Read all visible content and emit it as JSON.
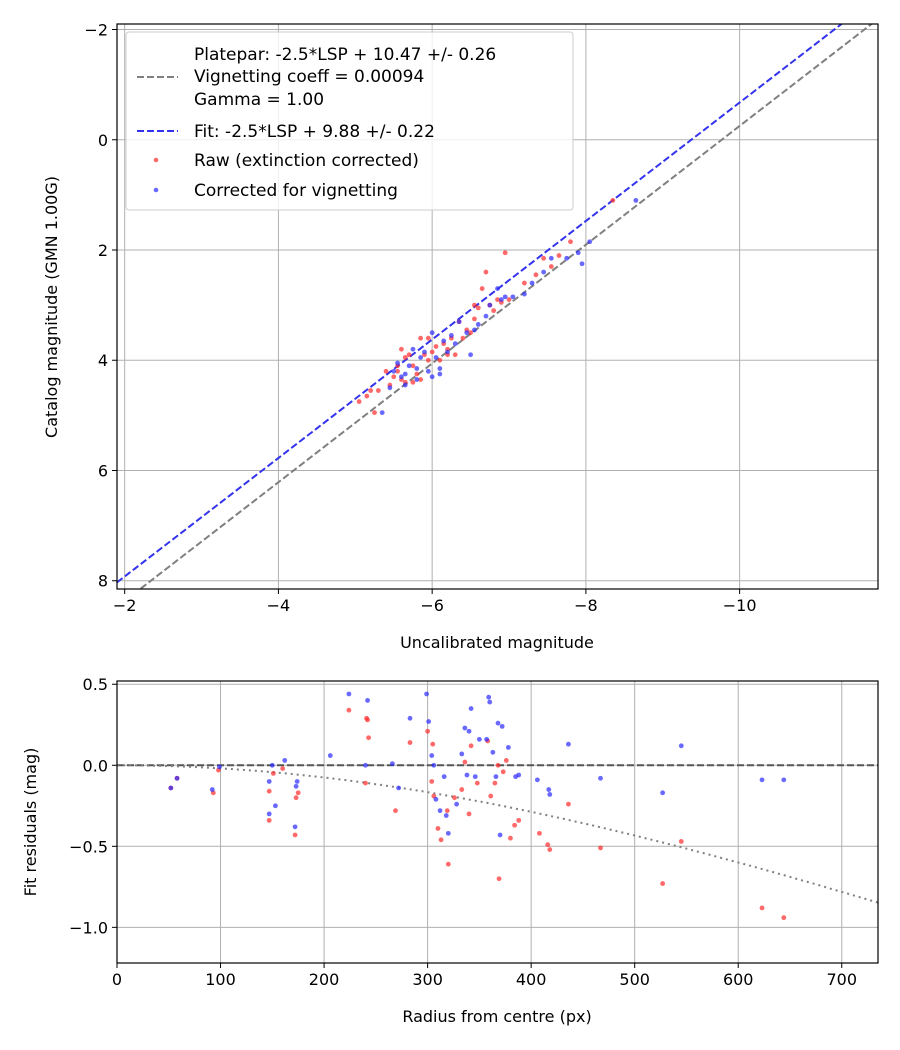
{
  "chart_data": [
    {
      "type": "scatter",
      "name": "calibration",
      "xlabel": "Uncalibrated magnitude",
      "ylabel": "Catalog magnitude (GMN 1.00G)",
      "xlim": [
        -1.9,
        -11.8
      ],
      "ylim": [
        8.15,
        -2.1
      ],
      "xticks": [
        -2,
        -4,
        -6,
        -8,
        -10
      ],
      "xtick_labels": [
        "−2",
        "−4",
        "−6",
        "−8",
        "−10"
      ],
      "yticks": [
        -2,
        0,
        2,
        4,
        6,
        8
      ],
      "ytick_labels": [
        "−2",
        "0",
        "2",
        "4",
        "6",
        "8"
      ],
      "grid": true,
      "legend_position": "top-left",
      "legend": {
        "platepar_line1": "Platepar: -2.5*LSP + 10.47 +/- 0.26",
        "platepar_line2": "Vignetting coeff = 0.00094",
        "platepar_line3": "Gamma = 1.00",
        "fit": "Fit: -2.5*LSP + 9.88 +/- 0.22",
        "raw": "Raw (extinction corrected)",
        "corrected": "Corrected for vignetting"
      },
      "lines": [
        {
          "name": "Platepar",
          "color": "#808080",
          "style": "dashed",
          "x": [
            -1.9,
            -11.8
          ],
          "y": [
            8.475,
            -2.19
          ],
          "x_range": [
            -1.9,
            -11.8
          ]
        },
        {
          "name": "Fit",
          "color": "#3333ee",
          "style": "dashed",
          "x": [
            -1.9,
            -11.8
          ],
          "y": [
            8.03,
            -2.61
          ],
          "x_range": [
            -1.9,
            -11.8
          ]
        }
      ],
      "series": [
        {
          "name": "Raw (extinction corrected)",
          "color": "#ff2a2a",
          "points": [
            [
              -5.05,
              4.75
            ],
            [
              -5.2,
              4.55
            ],
            [
              -5.3,
              4.55
            ],
            [
              -5.15,
              4.65
            ],
            [
              -5.4,
              4.2
            ],
            [
              -5.45,
              4.45
            ],
            [
              -5.5,
              4.3
            ],
            [
              -5.55,
              4.1
            ],
            [
              -5.55,
              4.2
            ],
            [
              -5.6,
              4.35
            ],
            [
              -5.65,
              3.95
            ],
            [
              -5.6,
              3.8
            ],
            [
              -5.7,
              3.9
            ],
            [
              -5.65,
              4.4
            ],
            [
              -5.75,
              4.1
            ],
            [
              -5.8,
              4.25
            ],
            [
              -5.85,
              3.6
            ],
            [
              -5.85,
              4.35
            ],
            [
              -5.9,
              3.9
            ],
            [
              -5.95,
              4.0
            ],
            [
              -6.0,
              3.85
            ],
            [
              -6.05,
              3.75
            ],
            [
              -6.1,
              4.0
            ],
            [
              -6.15,
              3.7
            ],
            [
              -6.2,
              3.8
            ],
            [
              -6.25,
              3.6
            ],
            [
              -6.3,
              3.9
            ],
            [
              -6.35,
              3.3
            ],
            [
              -6.4,
              3.6
            ],
            [
              -6.45,
              3.45
            ],
            [
              -6.5,
              3.5
            ],
            [
              -6.55,
              3.25
            ],
            [
              -6.6,
              3.05
            ],
            [
              -6.65,
              2.7
            ],
            [
              -6.7,
              2.4
            ],
            [
              -6.75,
              3.0
            ],
            [
              -6.8,
              3.1
            ],
            [
              -6.85,
              2.9
            ],
            [
              -6.9,
              2.95
            ],
            [
              -6.95,
              2.05
            ],
            [
              -7.0,
              2.9
            ],
            [
              -7.2,
              2.6
            ],
            [
              -7.35,
              2.45
            ],
            [
              -7.45,
              2.15
            ],
            [
              -7.55,
              2.3
            ],
            [
              -7.65,
              2.1
            ],
            [
              -7.8,
              1.85
            ],
            [
              -8.35,
              1.1
            ],
            [
              -5.25,
              4.95
            ],
            [
              -5.75,
              4.4
            ],
            [
              -6.2,
              3.9
            ],
            [
              -6.55,
              3.0
            ],
            [
              -5.95,
              3.6
            ]
          ]
        },
        {
          "name": "Corrected for vignetting",
          "color": "#2a2aff",
          "points": [
            [
              -5.35,
              4.95
            ],
            [
              -5.45,
              4.5
            ],
            [
              -5.5,
              4.2
            ],
            [
              -5.55,
              4.05
            ],
            [
              -5.6,
              4.3
            ],
            [
              -5.65,
              4.25
            ],
            [
              -5.7,
              4.1
            ],
            [
              -5.75,
              3.8
            ],
            [
              -5.8,
              4.35
            ],
            [
              -5.85,
              3.95
            ],
            [
              -5.9,
              3.85
            ],
            [
              -5.95,
              4.2
            ],
            [
              -6.0,
              4.3
            ],
            [
              -6.0,
              3.5
            ],
            [
              -6.05,
              3.95
            ],
            [
              -6.1,
              4.15
            ],
            [
              -6.15,
              3.65
            ],
            [
              -6.2,
              3.85
            ],
            [
              -6.25,
              3.55
            ],
            [
              -6.3,
              3.7
            ],
            [
              -6.35,
              3.3
            ],
            [
              -6.45,
              3.5
            ],
            [
              -6.5,
              3.9
            ],
            [
              -6.55,
              3.45
            ],
            [
              -6.6,
              3.35
            ],
            [
              -6.7,
              3.2
            ],
            [
              -6.75,
              3.0
            ],
            [
              -6.85,
              2.7
            ],
            [
              -6.9,
              2.9
            ],
            [
              -6.95,
              2.85
            ],
            [
              -7.05,
              2.85
            ],
            [
              -7.2,
              2.8
            ],
            [
              -7.3,
              2.6
            ],
            [
              -7.45,
              2.4
            ],
            [
              -7.55,
              2.15
            ],
            [
              -7.75,
              2.15
            ],
            [
              -7.9,
              2.05
            ],
            [
              -7.95,
              2.25
            ],
            [
              -8.05,
              1.85
            ],
            [
              -8.65,
              1.1
            ],
            [
              -5.65,
              4.45
            ],
            [
              -5.8,
              4.15
            ],
            [
              -6.1,
              4.25
            ]
          ]
        }
      ]
    },
    {
      "type": "scatter",
      "name": "residuals",
      "xlabel": "Radius from centre (px)",
      "ylabel": "Fit residuals (mag)",
      "xlim": [
        0,
        735
      ],
      "ylim": [
        -1.22,
        0.52
      ],
      "xticks": [
        0,
        100,
        200,
        300,
        400,
        500,
        600,
        700
      ],
      "xtick_labels": [
        "0",
        "100",
        "200",
        "300",
        "400",
        "500",
        "600",
        "700"
      ],
      "yticks": [
        0.5,
        0.0,
        -0.5,
        -1.0
      ],
      "ytick_labels": [
        "0.5",
        "0.0",
        "−0.5",
        "−1.0"
      ],
      "grid": true,
      "reference_line": {
        "y": 0.0,
        "color": "#555555",
        "style": "dashed"
      },
      "vignetting_curve": {
        "coeff": 0.00094,
        "color": "#808080",
        "style": "dotted"
      },
      "series": [
        {
          "name": "Raw (extinction corrected)",
          "color": "#ff2a2a",
          "points": [
            [
              52,
              -0.14
            ],
            [
              58,
              -0.08
            ],
            [
              93,
              -0.17
            ],
            [
              98,
              -0.03
            ],
            [
              147,
              -0.34
            ],
            [
              147,
              -0.16
            ],
            [
              151,
              -0.05
            ],
            [
              160,
              -0.02
            ],
            [
              172,
              -0.43
            ],
            [
              173,
              -0.2
            ],
            [
              175,
              -0.17
            ],
            [
              224,
              0.34
            ],
            [
              240,
              -0.11
            ],
            [
              242,
              0.28
            ],
            [
              243,
              0.17
            ],
            [
              269,
              -0.28
            ],
            [
              283,
              0.14
            ],
            [
              300,
              0.21
            ],
            [
              304,
              -0.1
            ],
            [
              305,
              0.13
            ],
            [
              306,
              -0.19
            ],
            [
              310,
              -0.39
            ],
            [
              313,
              -0.46
            ],
            [
              319,
              -0.28
            ],
            [
              320,
              -0.61
            ],
            [
              326,
              -0.2
            ],
            [
              333,
              -0.15
            ],
            [
              336,
              0.02
            ],
            [
              340,
              -0.3
            ],
            [
              342,
              0.12
            ],
            [
              348,
              -0.11
            ],
            [
              358,
              0.15
            ],
            [
              361,
              -0.19
            ],
            [
              365,
              -0.11
            ],
            [
              368,
              0.0
            ],
            [
              369,
              -0.7
            ],
            [
              373,
              -0.04
            ],
            [
              376,
              0.03
            ],
            [
              380,
              -0.45
            ],
            [
              384,
              -0.37
            ],
            [
              388,
              -0.34
            ],
            [
              408,
              -0.42
            ],
            [
              416,
              -0.49
            ],
            [
              418,
              -0.52
            ],
            [
              436,
              -0.24
            ],
            [
              467,
              -0.51
            ],
            [
              527,
              -0.73
            ],
            [
              545,
              -0.47
            ],
            [
              623,
              -0.88
            ],
            [
              644,
              -0.94
            ],
            [
              241,
              0.29
            ]
          ]
        },
        {
          "name": "Corrected for vignetting",
          "color": "#2a2aff",
          "points": [
            [
              52,
              -0.14
            ],
            [
              58,
              -0.08
            ],
            [
              92,
              -0.15
            ],
            [
              99,
              -0.01
            ],
            [
              147,
              -0.3
            ],
            [
              147,
              -0.1
            ],
            [
              150,
              0.0
            ],
            [
              153,
              -0.25
            ],
            [
              162,
              0.03
            ],
            [
              172,
              -0.38
            ],
            [
              173,
              -0.13
            ],
            [
              174,
              -0.1
            ],
            [
              206,
              0.06
            ],
            [
              224,
              0.44
            ],
            [
              240,
              0.0
            ],
            [
              242,
              0.4
            ],
            [
              266,
              0.01
            ],
            [
              272,
              -0.14
            ],
            [
              283,
              0.29
            ],
            [
              299,
              0.44
            ],
            [
              301,
              0.27
            ],
            [
              304,
              0.06
            ],
            [
              306,
              0.0
            ],
            [
              308,
              -0.21
            ],
            [
              312,
              -0.28
            ],
            [
              316,
              -0.07
            ],
            [
              318,
              -0.31
            ],
            [
              320,
              -0.42
            ],
            [
              328,
              -0.24
            ],
            [
              333,
              0.07
            ],
            [
              336,
              0.23
            ],
            [
              338,
              -0.06
            ],
            [
              340,
              0.21
            ],
            [
              342,
              0.35
            ],
            [
              346,
              -0.07
            ],
            [
              350,
              0.16
            ],
            [
              357,
              0.16
            ],
            [
              359,
              0.42
            ],
            [
              360,
              0.39
            ],
            [
              363,
              0.08
            ],
            [
              366,
              -0.07
            ],
            [
              368,
              0.26
            ],
            [
              370,
              -0.43
            ],
            [
              372,
              0.24
            ],
            [
              378,
              0.11
            ],
            [
              385,
              -0.07
            ],
            [
              388,
              -0.06
            ],
            [
              406,
              -0.09
            ],
            [
              417,
              -0.15
            ],
            [
              418,
              -0.18
            ],
            [
              436,
              0.13
            ],
            [
              467,
              -0.08
            ],
            [
              527,
              -0.17
            ],
            [
              545,
              0.12
            ],
            [
              623,
              -0.09
            ],
            [
              644,
              -0.09
            ]
          ]
        }
      ]
    }
  ]
}
